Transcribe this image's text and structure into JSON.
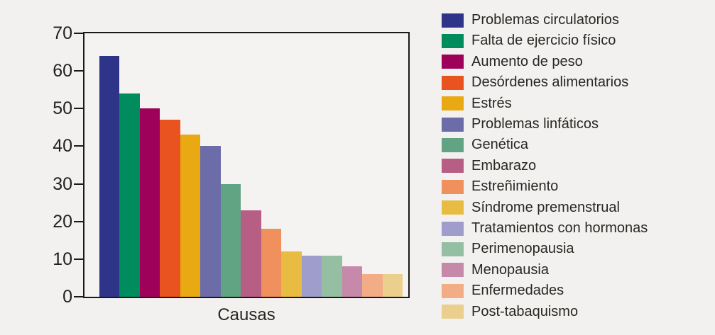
{
  "figure": {
    "background": "#f2f1ef",
    "plot_background": "#f4f3f1",
    "frame_color": "#1a1a1a",
    "text_color": "#2a2723"
  },
  "chart_data": {
    "type": "bar",
    "title": "",
    "xlabel": "Causas",
    "ylabel": "",
    "ylim": [
      0,
      70
    ],
    "yticks": [
      0,
      10,
      20,
      30,
      40,
      50,
      60,
      70
    ],
    "grid": false,
    "legend_position": "right",
    "categories": [
      "Problemas circulatorios",
      "Falta de ejercicio físico",
      "Aumento de peso",
      "Desórdenes alimentarios",
      "Estrés",
      "Problemas linfáticos",
      "Genética",
      "Embarazo",
      "Estreñimiento",
      "Síndrome premenstrual",
      "Tratamientos con hormonas",
      "Perimenopausia",
      "Menopausia",
      "Enfermedades",
      "Post-tabaquismo"
    ],
    "values": [
      64,
      54,
      50,
      47,
      43,
      40,
      30,
      23,
      18,
      12,
      11,
      11,
      8,
      6,
      6
    ],
    "colors": [
      "#2e3588",
      "#008c5c",
      "#9d0159",
      "#e8531f",
      "#e9a912",
      "#6c6ca8",
      "#61a483",
      "#b75e85",
      "#f0905c",
      "#e8bb42",
      "#9e9dcb",
      "#94bfa2",
      "#c689aa",
      "#f2ad86",
      "#eacf8d"
    ]
  }
}
